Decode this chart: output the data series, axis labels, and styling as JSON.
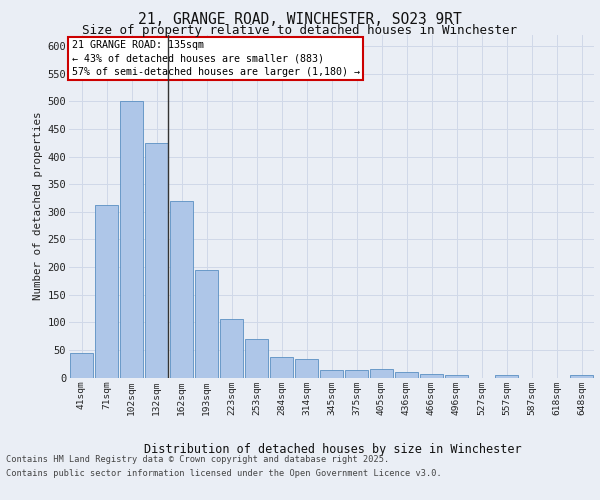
{
  "title_line1": "21, GRANGE ROAD, WINCHESTER, SO23 9RT",
  "title_line2": "Size of property relative to detached houses in Winchester",
  "xlabel": "Distribution of detached houses by size in Winchester",
  "ylabel": "Number of detached properties",
  "categories": [
    "41sqm",
    "71sqm",
    "102sqm",
    "132sqm",
    "162sqm",
    "193sqm",
    "223sqm",
    "253sqm",
    "284sqm",
    "314sqm",
    "345sqm",
    "375sqm",
    "405sqm",
    "436sqm",
    "466sqm",
    "496sqm",
    "527sqm",
    "557sqm",
    "587sqm",
    "618sqm",
    "648sqm"
  ],
  "values": [
    45,
    312,
    500,
    425,
    320,
    195,
    105,
    70,
    38,
    33,
    13,
    13,
    15,
    10,
    7,
    5,
    0,
    4,
    0,
    0,
    4
  ],
  "bar_color": "#aec6e8",
  "bar_edge_color": "#5a8fc2",
  "annotation_text_line1": "21 GRANGE ROAD: 135sqm",
  "annotation_text_line2": "← 43% of detached houses are smaller (883)",
  "annotation_text_line3": "57% of semi-detached houses are larger (1,180) →",
  "annotation_box_facecolor": "#ffffff",
  "annotation_box_edgecolor": "#cc0000",
  "vline_color": "#333333",
  "grid_color": "#d0d8e8",
  "bg_color": "#eaeef5",
  "ylim": [
    0,
    620
  ],
  "yticks": [
    0,
    50,
    100,
    150,
    200,
    250,
    300,
    350,
    400,
    450,
    500,
    550,
    600
  ],
  "footer_line1": "Contains HM Land Registry data © Crown copyright and database right 2025.",
  "footer_line2": "Contains public sector information licensed under the Open Government Licence v3.0."
}
